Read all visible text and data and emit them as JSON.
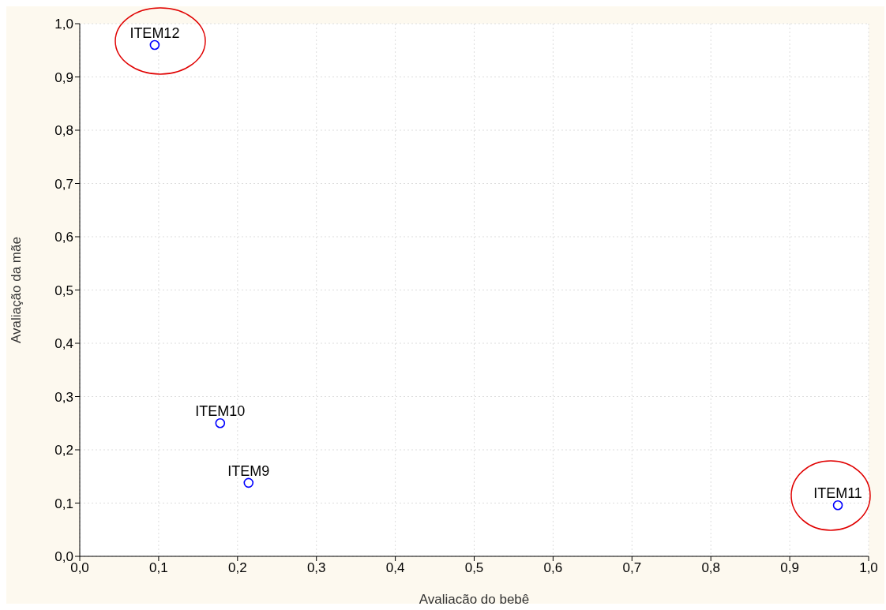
{
  "chart_data": {
    "type": "scatter",
    "xlabel": "Avaliacão do bebê",
    "ylabel": "Avaliação da mãe",
    "x": [
      0.095,
      0.178,
      0.214,
      0.961
    ],
    "values": [
      0.96,
      0.25,
      0.138,
      0.096
    ],
    "color": "#0000ff",
    "marker": "circle",
    "grid": true,
    "xlim": [
      0,
      1
    ],
    "ylim": [
      0,
      1
    ],
    "xticks": [
      {
        "value": 0,
        "label": "0,0"
      },
      {
        "value": 0.1,
        "label": "0,1"
      },
      {
        "value": 0.2,
        "label": "0,2"
      },
      {
        "value": 0.3,
        "label": "0,3"
      },
      {
        "value": 0.4,
        "label": "0,4"
      },
      {
        "value": 0.5,
        "label": "0,5"
      },
      {
        "value": 0.6,
        "label": "0,6"
      },
      {
        "value": 0.7,
        "label": "0,7"
      },
      {
        "value": 0.8,
        "label": "0,8"
      },
      {
        "value": 0.9,
        "label": "0,9"
      },
      {
        "value": 1,
        "label": "1,0"
      }
    ],
    "yticks": [
      {
        "value": 0,
        "label": "0,0"
      },
      {
        "value": 0.1,
        "label": "0,1"
      },
      {
        "value": 0.2,
        "label": "0,2"
      },
      {
        "value": 0.3,
        "label": "0,3"
      },
      {
        "value": 0.4,
        "label": "0,4"
      },
      {
        "value": 0.5,
        "label": "0,5"
      },
      {
        "value": 0.6,
        "label": "0,6"
      },
      {
        "value": 0.7,
        "label": "0,7"
      },
      {
        "value": 0.8,
        "label": "0,8"
      },
      {
        "value": 0.9,
        "label": "0,9"
      },
      {
        "value": 1,
        "label": "1,0"
      }
    ],
    "annotations": [
      {
        "text": "ITEM12",
        "x": 0.095,
        "y": 0.96
      },
      {
        "text": "ITEM10",
        "x": 0.178,
        "y": 0.25
      },
      {
        "text": "ITEM9",
        "x": 0.214,
        "y": 0.138
      },
      {
        "text": "ITEM11",
        "x": 0.961,
        "y": 0.096
      }
    ]
  }
}
